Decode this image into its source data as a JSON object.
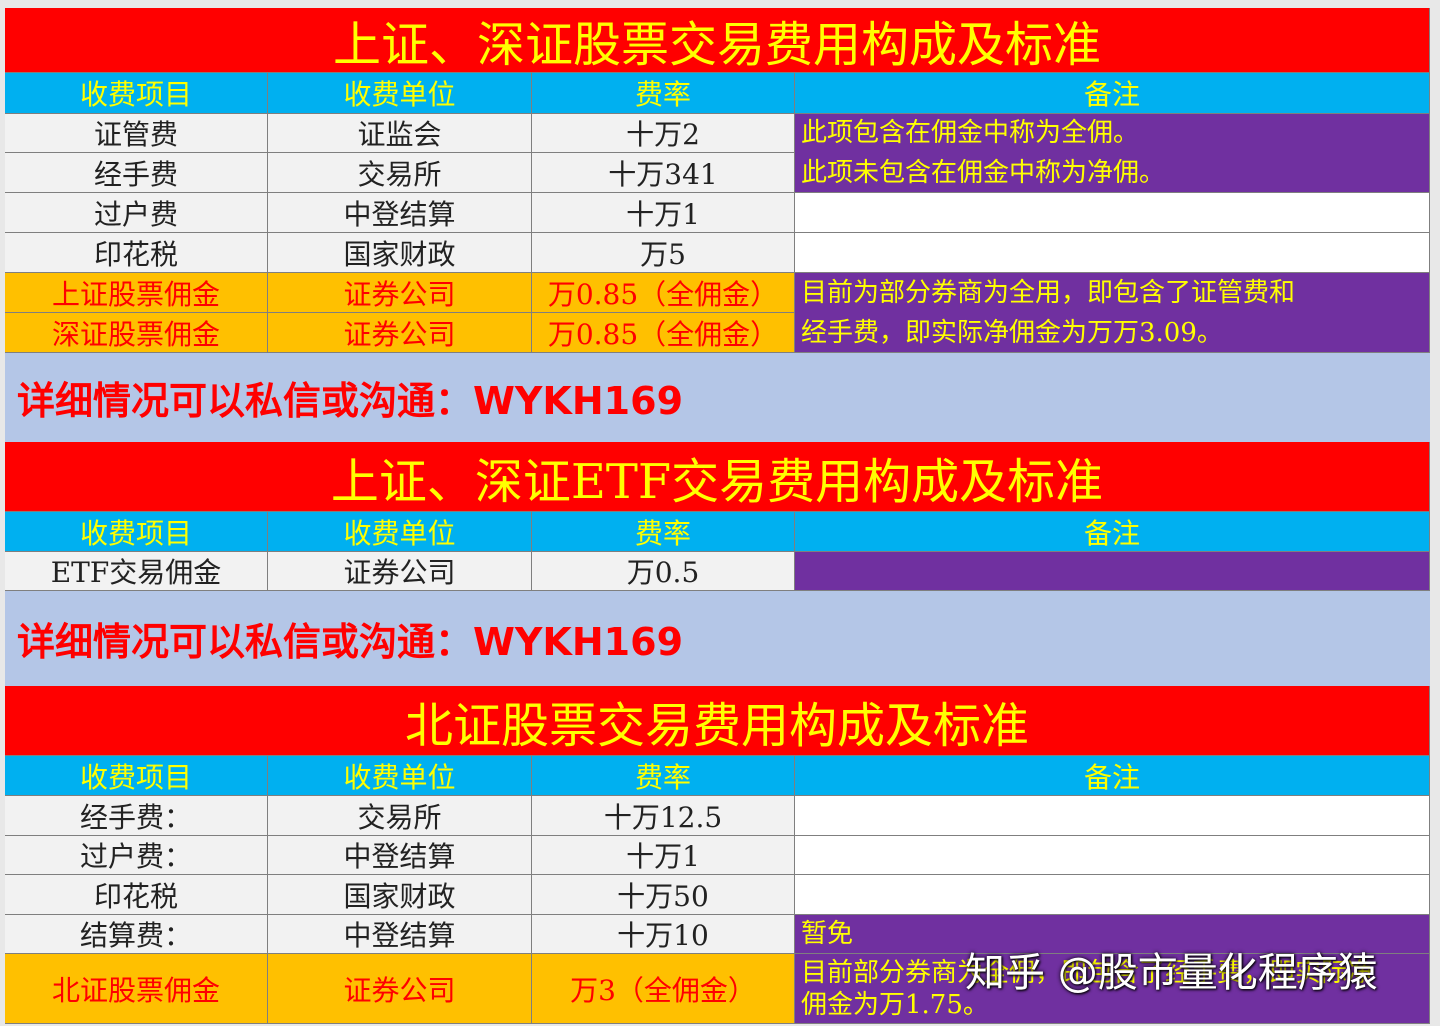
{
  "sections": [
    {
      "title": "上证、深证股票交易费用构成及标准",
      "headers": [
        "收费项目",
        "收费单位",
        "费率",
        "备注"
      ],
      "rows": [
        [
          "证管费",
          "证监会",
          "十万2"
        ],
        [
          "经手费",
          "交易所",
          "十万341"
        ],
        [
          "过户费",
          "中登结算",
          "十万1"
        ],
        [
          "印花税",
          "国家财政",
          "万5"
        ],
        [
          "上证股票佣金",
          "证券公司",
          "万0.85（全佣金）"
        ],
        [
          "深证股票佣金",
          "证券公司",
          "万0.85（全佣金）"
        ]
      ],
      "notes": [
        [
          "此项包含在佣金中称为全佣。",
          "此项未包含在佣金中称为净佣。"
        ],
        [
          "目前为部分券商为全用，即包含了证管费和",
          "经手费，即实际净佣金为万万3.09。"
        ]
      ],
      "contact": "详细情况可以私信或沟通：WYKH169"
    },
    {
      "title": "上证、深证ETF交易费用构成及标准",
      "headers": [
        "收费项目",
        "收费单位",
        "费率",
        "备注"
      ],
      "rows": [
        [
          "ETF交易佣金",
          "证券公司",
          "万0.5"
        ]
      ],
      "contact": "详细情况可以私信或沟通：WYKH169"
    },
    {
      "title": "北证股票交易费用构成及标准",
      "headers": [
        "收费项目",
        "收费单位",
        "费率",
        "备注"
      ],
      "rows": [
        [
          "经手费：",
          "交易所",
          "十万12.5"
        ],
        [
          "过户费：",
          "中登结算",
          "十万1"
        ],
        [
          "印花税",
          "国家财政",
          "十万50"
        ],
        [
          "结算费：",
          "中登结算",
          "十万10"
        ],
        [
          "北证股票佣金",
          "证券公司",
          "万3（全佣金）"
        ]
      ],
      "notes": [
        [
          "暂免"
        ],
        [
          "目前部分券商为全佣，即包含了经手费，即实际净",
          "佣金为万1.75。"
        ]
      ]
    }
  ],
  "watermark": "知乎 @股市量化程序猿"
}
